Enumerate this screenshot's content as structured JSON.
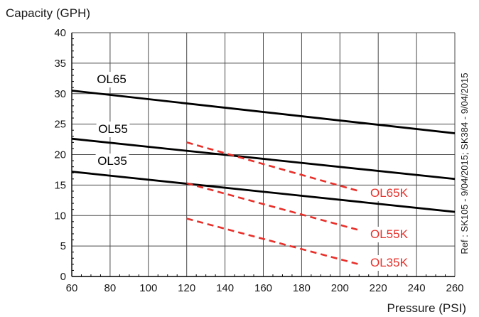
{
  "chart_data": {
    "type": "line",
    "ylabel": "Capacity  (GPH)",
    "xlabel": "Pressure (PSI)",
    "xlim": [
      60,
      260
    ],
    "ylim": [
      0,
      40
    ],
    "x_ticks": [
      60,
      80,
      100,
      120,
      140,
      160,
      180,
      200,
      220,
      240,
      260
    ],
    "y_ticks": [
      0,
      5,
      10,
      15,
      20,
      25,
      30,
      35,
      40
    ],
    "grid": true,
    "note": "Ref : SK105 - 9/04/2015; SK384 - 9/04/2015",
    "series": [
      {
        "name": "OL65",
        "color": "#000000",
        "dashed": false,
        "x": [
          60,
          260
        ],
        "y": [
          30.5,
          23.5
        ]
      },
      {
        "name": "OL55",
        "color": "#000000",
        "dashed": false,
        "x": [
          60,
          260
        ],
        "y": [
          22.6,
          16.0
        ]
      },
      {
        "name": "OL35",
        "color": "#000000",
        "dashed": false,
        "x": [
          60,
          260
        ],
        "y": [
          17.2,
          10.6
        ]
      },
      {
        "name": "OL65K",
        "color": "#e8302a",
        "dashed": true,
        "x": [
          120,
          210
        ],
        "y": [
          22.0,
          14.0
        ]
      },
      {
        "name": "OL55K",
        "color": "#e8302a",
        "dashed": true,
        "x": [
          120,
          210
        ],
        "y": [
          15.3,
          7.6
        ]
      },
      {
        "name": "OL35K",
        "color": "#e8302a",
        "dashed": true,
        "x": [
          120,
          210
        ],
        "y": [
          9.5,
          2.0
        ]
      }
    ]
  }
}
